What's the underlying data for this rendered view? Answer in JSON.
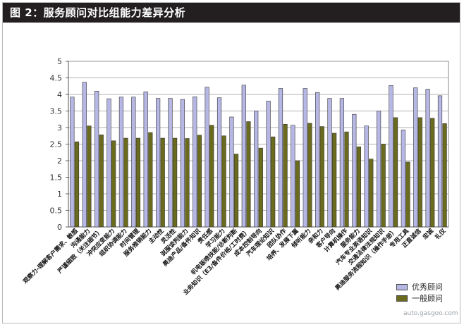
{
  "title": "图 2：服务顾问对比组能力差异分析",
  "watermark": "auto.gasgoo.com",
  "colors": {
    "series1": "#b7b7e6",
    "series2": "#6b6b1e",
    "title_bg": "#231f20",
    "grid": "#999999"
  },
  "chart_data": {
    "type": "bar",
    "title": "",
    "xlabel": "",
    "ylabel": "",
    "ylim": [
      0,
      5
    ],
    "yticks": [
      0,
      0.5,
      1,
      1.5,
      2,
      2.5,
      3,
      3.5,
      4,
      4.5,
      5
    ],
    "ytick_labels": [
      "0",
      "0.5",
      "1",
      "1.5",
      "2",
      "2.5",
      "3",
      "3.5",
      "4",
      "4.5",
      "5"
    ],
    "grid": true,
    "legend": "bottom-right",
    "categories": [
      "观察力-理解客户需求、敏感",
      "沟通能力",
      "严谨细致（关注细节）",
      "冲突应变能力",
      "组织协调能力",
      "时间管理",
      "服务推销能力",
      "主动性",
      "灵活性",
      "说服谈判能力",
      "奥迪产品/备件知识",
      "责任感",
      "学习能力",
      "机电钣喷技能/诊断判断",
      "业务知识（E3/备件价格/工时费）",
      "成本控制导向",
      "汽车理论知识",
      "团队协作",
      "培养、发展下属",
      "倾听能力",
      "亲和力",
      "客户导向",
      "计算机操作",
      "服务能力",
      "汽车专业英语知识",
      "交通法律法规知识",
      "奥迪服务流程知识（操作手册）",
      "专用工具",
      "正直诚信",
      "忠诚",
      "礼仪"
    ],
    "series": [
      {
        "name": "优秀顾问",
        "values": [
          3.92,
          4.37,
          4.1,
          3.87,
          3.92,
          3.92,
          4.08,
          3.88,
          3.88,
          3.85,
          3.93,
          4.22,
          3.9,
          3.32,
          4.28,
          3.5,
          3.8,
          4.18,
          3.07,
          4.18,
          4.06,
          3.88,
          3.88,
          3.4,
          3.05,
          3.5,
          4.27,
          2.93,
          4.2,
          4.16,
          3.96
        ]
      },
      {
        "name": "一般顾问",
        "values": [
          2.57,
          3.05,
          2.78,
          2.6,
          2.68,
          2.68,
          2.85,
          2.68,
          2.68,
          2.67,
          2.77,
          3.07,
          2.75,
          2.2,
          3.18,
          2.38,
          2.72,
          3.1,
          2.0,
          3.13,
          3.03,
          2.83,
          2.87,
          2.42,
          2.05,
          2.5,
          3.3,
          1.96,
          3.3,
          3.28,
          3.12
        ]
      }
    ]
  }
}
